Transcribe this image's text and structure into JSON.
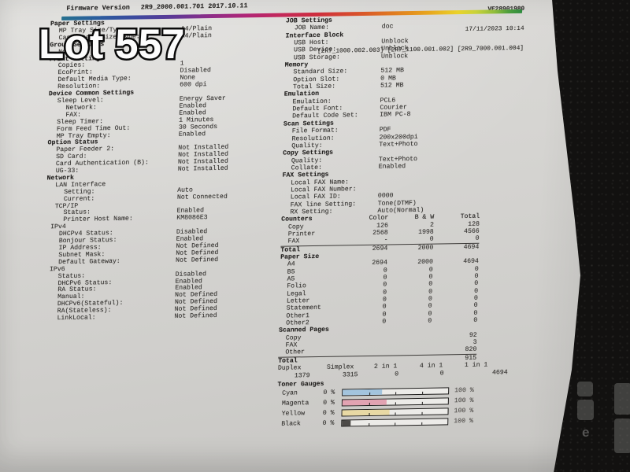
{
  "photo": {
    "lot_label": "Lot 557"
  },
  "page": {
    "firmware_label": "Firmware Version",
    "firmware_version": "2R9_2000.001.701 2017.10.11",
    "serial": "VE28901980",
    "datetime": "17/11/2023 10:14",
    "sub_versions": "[2R7_1000.002.003] [2R7_1100.001.002] [2R9_7000.001.004]",
    "left_sections": [
      {
        "title": "Paper Settings",
        "rows": [
          {
            "label": "MP Tray Size/Type:",
            "value": "A4/Plain",
            "indent": 1
          },
          {
            "label": "Cassette 1 Size/Type:",
            "value": "A4/Plain",
            "indent": 1
          }
        ]
      },
      {
        "title": "Group Settings",
        "rows": [
          {
            "label": "None",
            "value": "",
            "indent": 1
          }
        ]
      },
      {
        "title": "Print Settings",
        "rows": [
          {
            "label": "Copies:",
            "value": "1",
            "indent": 1
          },
          {
            "label": "EcoPrint:",
            "value": "Disabled",
            "indent": 1
          },
          {
            "label": "Default Media Type:",
            "value": "None",
            "indent": 1
          },
          {
            "label": "Resolution:",
            "value": "600 dpi",
            "indent": 1
          }
        ]
      },
      {
        "title": "Device Common Settings",
        "rows": [
          {
            "label": "Sleep Level:",
            "value": "Energy Saver",
            "indent": 1
          },
          {
            "label": "Network:",
            "value": "Enabled",
            "indent": 2
          },
          {
            "label": "FAX:",
            "value": "Enabled",
            "indent": 2
          },
          {
            "label": "Sleep Timer:",
            "value": "1 Minutes",
            "indent": 1
          },
          {
            "label": "Form Feed Time Out:",
            "value": "30 Seconds",
            "indent": 1
          },
          {
            "label": "MP Tray Empty:",
            "value": "Enabled",
            "indent": 1
          }
        ]
      },
      {
        "title": "Option Status",
        "rows": [
          {
            "label": "Paper Feeder 2:",
            "value": "Not Installed",
            "indent": 1
          },
          {
            "label": "SD Card:",
            "value": "Not Installed",
            "indent": 1
          },
          {
            "label": "Card Authentication (B):",
            "value": "Not Installed",
            "indent": 1
          },
          {
            "label": "UG-33:",
            "value": "Not Installed",
            "indent": 1
          }
        ]
      },
      {
        "title": "Network",
        "rows": [
          {
            "label": "LAN Interface",
            "value": "",
            "indent": 1
          },
          {
            "label": "Setting:",
            "value": "Auto",
            "indent": 2
          },
          {
            "label": "Current:",
            "value": "Not Connected",
            "indent": 2
          },
          {
            "label": "TCP/IP",
            "value": "",
            "indent": 1
          },
          {
            "label": "Status:",
            "value": "Enabled",
            "indent": 2
          },
          {
            "label": "Printer Host Name:",
            "value": "KM8086E3",
            "indent": 2
          },
          {
            "label": "IPv4",
            "value": "",
            "indent": 0.5
          },
          {
            "label": "DHCPv4 Status:",
            "value": "Disabled",
            "indent": 1.5
          },
          {
            "label": "Bonjour Status:",
            "value": "Enabled",
            "indent": 1.5
          },
          {
            "label": "IP Address:",
            "value": "Not Defined",
            "indent": 1.5
          },
          {
            "label": "Subnet Mask:",
            "value": "Not Defined",
            "indent": 1.5
          },
          {
            "label": "Default Gateway:",
            "value": "Not Defined",
            "indent": 1.5
          },
          {
            "label": "IPv6",
            "value": "",
            "indent": 0.5
          },
          {
            "label": "Status:",
            "value": "Disabled",
            "indent": 1.5
          },
          {
            "label": "DHCPv6 Status:",
            "value": "Enabled",
            "indent": 1.5
          },
          {
            "label": "RA Status:",
            "value": "Enabled",
            "indent": 1.5
          },
          {
            "label": "Manual:",
            "value": "Not Defined",
            "indent": 1.5
          },
          {
            "label": "DHCPv6(Stateful):",
            "value": "Not Defined",
            "indent": 1.5
          },
          {
            "label": "RA(Stateless):",
            "value": "Not Defined",
            "indent": 1.5
          },
          {
            "label": "LinkLocal:",
            "value": "Not Defined",
            "indent": 1.5
          }
        ]
      }
    ],
    "right_sections": [
      {
        "title": "JOB Settings",
        "rows": [
          {
            "label": "JOB Name:",
            "value": "doc",
            "indent": 1
          }
        ]
      },
      {
        "title": "Interface Block",
        "rows": [
          {
            "label": "USB Host:",
            "value": "Unblock",
            "indent": 1
          },
          {
            "label": "USB Device:",
            "value": "Unblock",
            "indent": 1
          },
          {
            "label": "USB Storage:",
            "value": "Unblock",
            "indent": 1
          }
        ]
      },
      {
        "title": "Memory",
        "rows": [
          {
            "label": "Standard Size:",
            "value": "512 MB",
            "indent": 1
          },
          {
            "label": "Option Slot:",
            "value": "0 MB",
            "indent": 1
          },
          {
            "label": "Total Size:",
            "value": "512 MB",
            "indent": 1
          }
        ]
      },
      {
        "title": "Emulation",
        "rows": [
          {
            "label": "Emulation:",
            "value": "PCL6",
            "indent": 1
          },
          {
            "label": "Default Font:",
            "value": "Courier",
            "indent": 1
          },
          {
            "label": "Default Code Set:",
            "value": "IBM PC-8",
            "indent": 1
          }
        ]
      },
      {
        "title": "Scan Settings",
        "rows": [
          {
            "label": "File Format:",
            "value": "PDF",
            "indent": 1
          },
          {
            "label": "Resolution:",
            "value": "200x200dpi",
            "indent": 1
          },
          {
            "label": "Quality:",
            "value": "Text+Photo",
            "indent": 1
          }
        ]
      },
      {
        "title": "Copy Settings",
        "rows": [
          {
            "label": "Quality:",
            "value": "Text+Photo",
            "indent": 1
          },
          {
            "label": "Collate:",
            "value": "Enabled",
            "indent": 1
          }
        ]
      },
      {
        "title": "FAX Settings",
        "rows": [
          {
            "label": "Local FAX Name:",
            "value": "",
            "indent": 1
          },
          {
            "label": "Local FAX Number:",
            "value": "",
            "indent": 1
          },
          {
            "label": "Local FAX ID:",
            "value": "0000",
            "indent": 1
          },
          {
            "label": "FAX line Setting:",
            "value": "Tone(DTMF)",
            "indent": 1
          },
          {
            "label": "RX Setting:",
            "value": "Auto(Normal)",
            "indent": 1
          }
        ]
      }
    ],
    "counters": {
      "title": "Counters",
      "col_headers": [
        "Color",
        "B & W",
        "Total"
      ],
      "rows": [
        {
          "label": "Copy",
          "values": [
            "126",
            "2",
            "128"
          ]
        },
        {
          "label": "Printer",
          "values": [
            "2568",
            "1998",
            "4566"
          ]
        },
        {
          "label": "FAX",
          "values": [
            "-",
            "0",
            "0"
          ]
        },
        {
          "label": "Total",
          "values": [
            "2694",
            "2000",
            "4694"
          ],
          "total": true
        }
      ]
    },
    "paper_size": {
      "title": "Paper Size",
      "rows": [
        {
          "label": "A4",
          "values": [
            "2694",
            "2000",
            "4694"
          ]
        },
        {
          "label": "B5",
          "values": [
            "0",
            "0",
            "0"
          ]
        },
        {
          "label": "A5",
          "values": [
            "0",
            "0",
            "0"
          ]
        },
        {
          "label": "Folio",
          "values": [
            "0",
            "0",
            "0"
          ]
        },
        {
          "label": "Legal",
          "values": [
            "0",
            "0",
            "0"
          ]
        },
        {
          "label": "Letter",
          "values": [
            "0",
            "0",
            "0"
          ]
        },
        {
          "label": "Statement",
          "values": [
            "0",
            "0",
            "0"
          ]
        },
        {
          "label": "Other1",
          "values": [
            "0",
            "0",
            "0"
          ]
        },
        {
          "label": "Other2",
          "values": [
            "0",
            "0",
            "0"
          ]
        }
      ]
    },
    "scanned_pages": {
      "title": "Scanned Pages",
      "rows": [
        {
          "label": "Copy",
          "value": "92"
        },
        {
          "label": "FAX",
          "value": "3"
        },
        {
          "label": "Other",
          "value": "820"
        },
        {
          "label": "Total",
          "value": "915",
          "total": true
        }
      ]
    },
    "duplex_stats": [
      {
        "label": "Duplex",
        "value": "1379"
      },
      {
        "label": "Simplex",
        "value": "3315"
      },
      {
        "label": "2 in 1",
        "value": "0"
      },
      {
        "label": "4 in 1",
        "value": "0"
      },
      {
        "label": "1 in 1",
        "value": "4694"
      }
    ],
    "toner_gauges": {
      "title": "Toner Gauges",
      "min_label": "0 %",
      "max_label": "100 %",
      "rows": [
        {
          "name": "Cyan",
          "percent": 37,
          "color": "#a3c4dd"
        },
        {
          "name": "Magenta",
          "percent": 42,
          "color": "#e2a3b2"
        },
        {
          "name": "Yellow",
          "percent": 45,
          "color": "#e8d9a4"
        },
        {
          "name": "Black",
          "percent": 8,
          "color": "#4c4a47"
        }
      ]
    }
  }
}
